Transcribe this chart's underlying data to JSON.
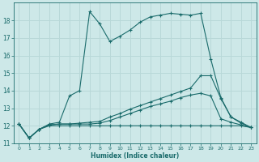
{
  "bg_color": "#cde8e8",
  "grid_color": "#b8d8d8",
  "line_color": "#1a6b6b",
  "xlabel": "Humidex (Indice chaleur)",
  "ylim": [
    11,
    19
  ],
  "xlim": [
    -0.5,
    23.5
  ],
  "yticks": [
    11,
    12,
    13,
    14,
    15,
    16,
    17,
    18
  ],
  "xticks": [
    0,
    1,
    2,
    3,
    4,
    5,
    6,
    7,
    8,
    9,
    10,
    11,
    12,
    13,
    14,
    15,
    16,
    17,
    18,
    19,
    20,
    21,
    22,
    23
  ],
  "series1_x": [
    0,
    1,
    2,
    3,
    4,
    5,
    6,
    7,
    8,
    9,
    10,
    11,
    12,
    13,
    14,
    15,
    16,
    17,
    18,
    19,
    20,
    21,
    22,
    23
  ],
  "series1_y": [
    12.1,
    11.3,
    11.8,
    12.1,
    12.2,
    13.7,
    14.0,
    18.5,
    17.8,
    16.8,
    17.1,
    17.45,
    17.9,
    18.2,
    18.3,
    18.4,
    18.35,
    18.3,
    18.4,
    15.8,
    13.6,
    12.5,
    12.2,
    11.9
  ],
  "series2_x": [
    0,
    1,
    2,
    3,
    4,
    5,
    6,
    7,
    8,
    9,
    10,
    11,
    12,
    13,
    14,
    15,
    16,
    17,
    18,
    19,
    20,
    21,
    22,
    23
  ],
  "series2_y": [
    12.1,
    11.3,
    11.8,
    12.05,
    12.1,
    12.1,
    12.15,
    12.2,
    12.25,
    12.5,
    12.7,
    12.95,
    13.15,
    13.35,
    13.55,
    13.75,
    13.95,
    14.15,
    14.85,
    14.85,
    13.55,
    12.5,
    12.15,
    11.9
  ],
  "series3_x": [
    0,
    1,
    2,
    3,
    4,
    5,
    6,
    7,
    8,
    9,
    10,
    11,
    12,
    13,
    14,
    15,
    16,
    17,
    18,
    19,
    20,
    21,
    22,
    23
  ],
  "series3_y": [
    12.1,
    11.3,
    11.8,
    12.05,
    12.1,
    12.1,
    12.1,
    12.1,
    12.15,
    12.3,
    12.5,
    12.7,
    12.9,
    13.1,
    13.25,
    13.4,
    13.6,
    13.75,
    13.85,
    13.7,
    12.4,
    12.2,
    12.05,
    11.9
  ],
  "series4_x": [
    0,
    1,
    2,
    3,
    4,
    5,
    6,
    7,
    8,
    9,
    10,
    11,
    12,
    13,
    14,
    15,
    16,
    17,
    18,
    19,
    20,
    21,
    22,
    23
  ],
  "series4_y": [
    12.1,
    11.3,
    11.8,
    12.0,
    12.0,
    12.0,
    12.0,
    12.0,
    12.0,
    12.0,
    12.0,
    12.0,
    12.0,
    12.0,
    12.0,
    12.0,
    12.0,
    12.0,
    12.0,
    12.0,
    12.0,
    12.0,
    12.0,
    11.9
  ]
}
